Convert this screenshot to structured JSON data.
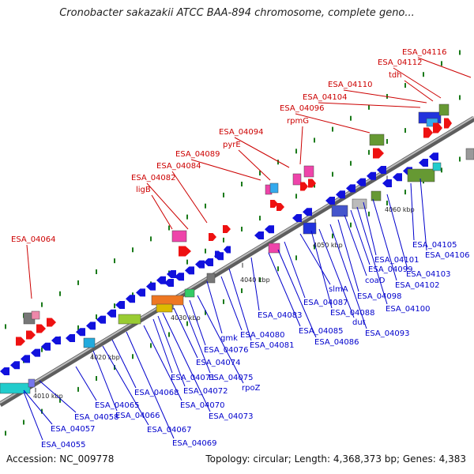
{
  "title": "Cronobacter sakazakii ATCC BAA-894 chromosome, complete geno...",
  "footer": {
    "accession": "Accession: NC_009778",
    "summary": "Topology: circular; Length: 4,368,373 bp; Genes: 4,383"
  },
  "colors": {
    "top_label": "#cc0000",
    "bottom_label": "#0000cc",
    "backbone": "#8a8a8a",
    "forward_arrow": "#ee1111",
    "reverse_arrow": "#1111dd",
    "tick": "#1a7a1a"
  },
  "ticks": [
    "4010 kbp",
    "4020 kbp",
    "4030 kbp",
    "4040 kbp",
    "4050 kbp",
    "4060 kbp"
  ],
  "top_labels": [
    "ESA_04064",
    "ligB",
    "ESA_04082",
    "ESA_04084",
    "ESA_04089",
    "pyrE",
    "ESA_04094",
    "rpmG",
    "ESA_04096",
    "ESA_04104",
    "ESA_04110",
    "tdh",
    "ESA_04112",
    "ESA_04116"
  ],
  "bottom_labels": [
    "ESA_04055",
    "ESA_04057",
    "ESA_04058",
    "ESA_04065",
    "ESA_04066",
    "ESA_04067",
    "ESA_04068",
    "ESA_04069",
    "ESA_04070",
    "ESA_04071",
    "ESA_04072",
    "ESA_04073",
    "ESA_04074",
    "ESA_04075",
    "rpoZ",
    "ESA_04076",
    "gmk",
    "ESA_04080",
    "ESA_04081",
    "ESA_04083",
    "ESA_04085",
    "ESA_04086",
    "ESA_04087",
    "slmA",
    "ESA_04088",
    "dut",
    "ESA_04093",
    "ESA_04098",
    "coaD",
    "ESA_04099",
    "ESA_04100",
    "ESA_04101",
    "ESA_04102",
    "ESA_04103",
    "ESA_04105",
    "ESA_04106"
  ]
}
